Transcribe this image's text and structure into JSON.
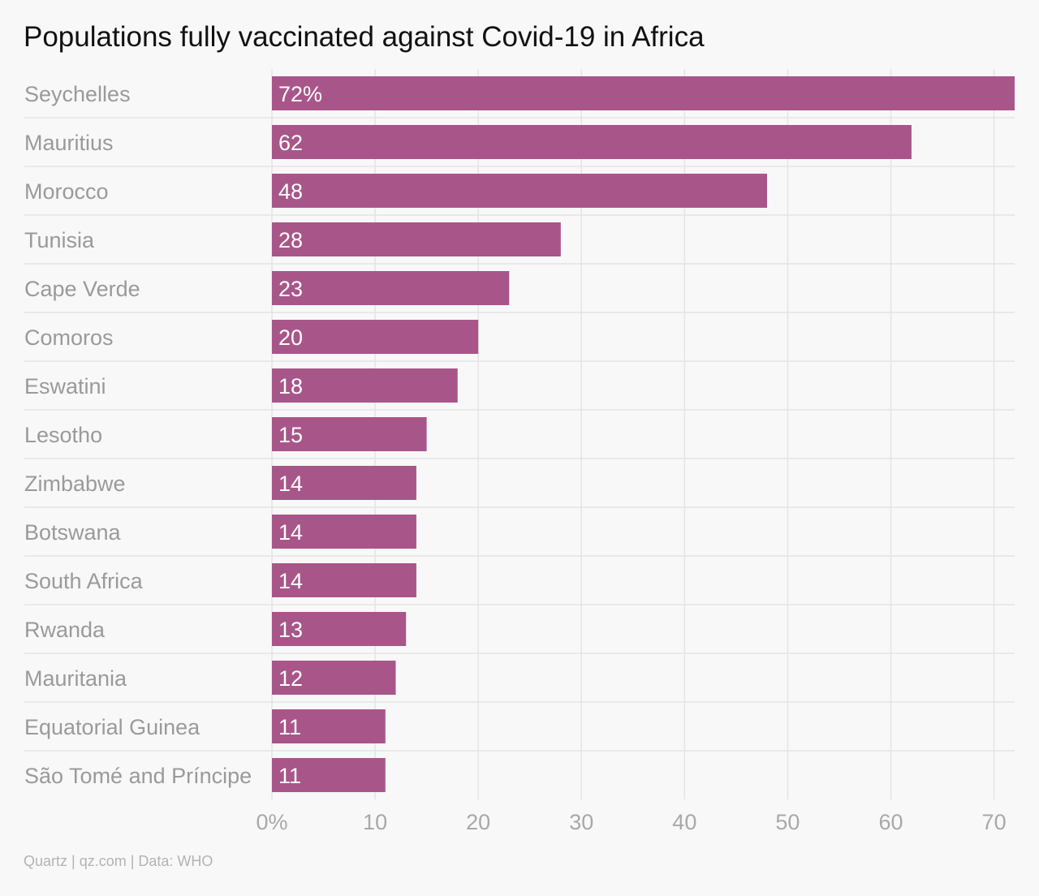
{
  "chart_data": {
    "type": "bar",
    "orientation": "horizontal",
    "title": "Populations fully vaccinated against Covid-19 in Africa",
    "categories": [
      "Seychelles",
      "Mauritius",
      "Morocco",
      "Tunisia",
      "Cape Verde",
      "Comoros",
      "Eswatini",
      "Lesotho",
      "Zimbabwe",
      "Botswana",
      "South Africa",
      "Rwanda",
      "Mauritania",
      "Equatorial Guinea",
      "São Tomé and Príncipe"
    ],
    "values": [
      72,
      62,
      48,
      28,
      23,
      20,
      18,
      15,
      14,
      14,
      14,
      13,
      12,
      11,
      11
    ],
    "value_labels": [
      "72%",
      "62",
      "48",
      "28",
      "23",
      "20",
      "18",
      "15",
      "14",
      "14",
      "14",
      "13",
      "12",
      "11",
      "11"
    ],
    "xticks": [
      0,
      10,
      20,
      30,
      40,
      50,
      60,
      70
    ],
    "xtick_labels": [
      "0%",
      "10",
      "20",
      "30",
      "40",
      "50",
      "60",
      "70"
    ],
    "xlim": [
      0,
      72
    ],
    "grid": true,
    "bar_color": "#a8568a"
  },
  "footer": "Quartz | qz.com | Data: WHO"
}
